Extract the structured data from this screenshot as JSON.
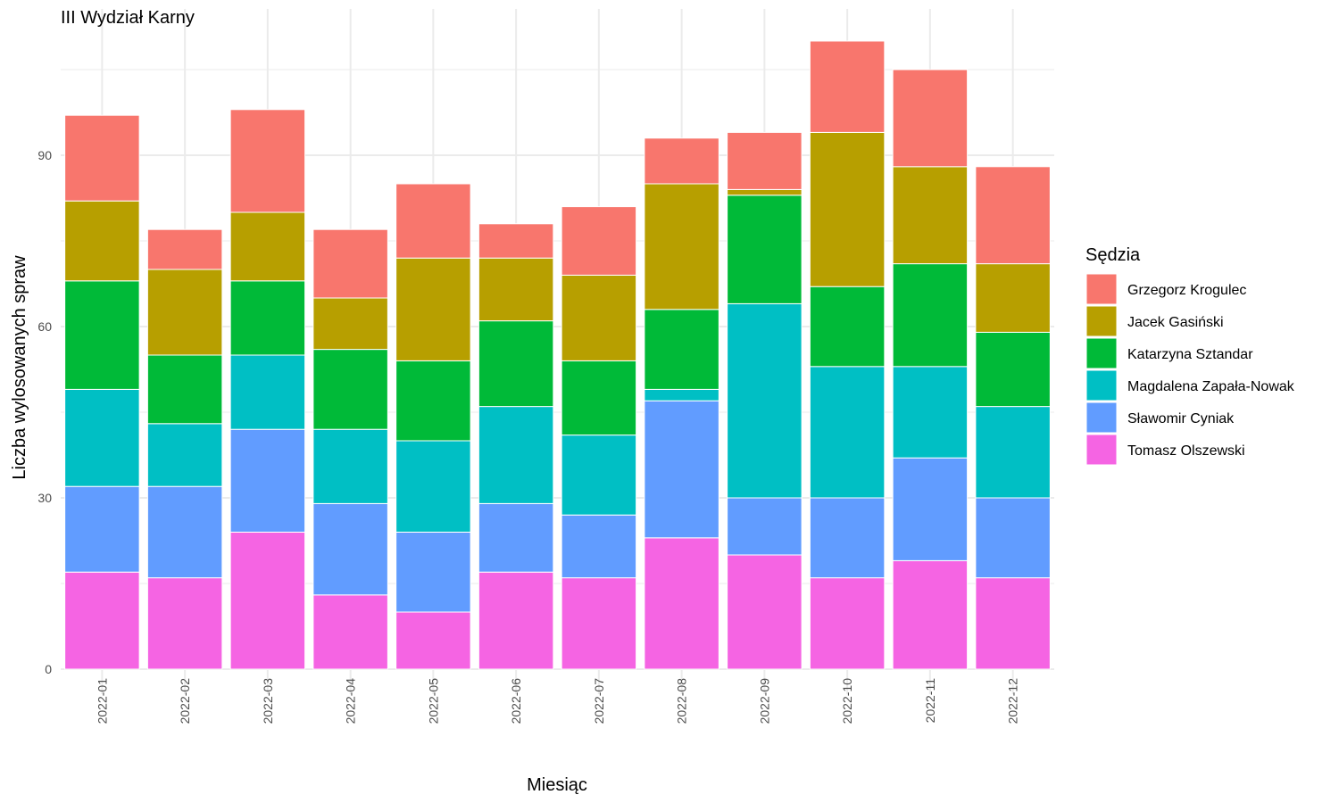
{
  "chart_data": {
    "type": "bar",
    "stacked": true,
    "title": "III Wydział Karny",
    "xlabel": "Miesiąc",
    "ylabel": "Liczba wylosowanych spraw",
    "ylim": [
      0,
      112
    ],
    "yticks": [
      0,
      30,
      60,
      90
    ],
    "grid": true,
    "legend_title": "Sędzia",
    "legend_position": "right",
    "categories": [
      "2022-01",
      "2022-02",
      "2022-03",
      "2022-04",
      "2022-05",
      "2022-06",
      "2022-07",
      "2022-08",
      "2022-09",
      "2022-10",
      "2022-11",
      "2022-12"
    ],
    "series": [
      {
        "name": "Tomasz Olszewski",
        "color": "#F564E3",
        "values": [
          17,
          16,
          24,
          13,
          10,
          17,
          16,
          23,
          20,
          16,
          19,
          16
        ]
      },
      {
        "name": "Sławomir Cyniak",
        "color": "#619CFF",
        "values": [
          15,
          16,
          18,
          16,
          14,
          12,
          11,
          24,
          10,
          14,
          18,
          14
        ]
      },
      {
        "name": "Magdalena Zapała-Nowak",
        "color": "#00BFC4",
        "values": [
          17,
          11,
          13,
          13,
          16,
          17,
          14,
          2,
          34,
          23,
          16,
          16
        ]
      },
      {
        "name": "Katarzyna Sztandar",
        "color": "#00BA38",
        "values": [
          19,
          12,
          13,
          14,
          14,
          15,
          13,
          14,
          19,
          14,
          18,
          13
        ]
      },
      {
        "name": "Jacek Gasiński",
        "color": "#B79F00",
        "values": [
          14,
          15,
          12,
          9,
          18,
          11,
          15,
          22,
          1,
          27,
          17,
          12
        ]
      },
      {
        "name": "Grzegorz Krogulec",
        "color": "#F8766D",
        "values": [
          15,
          7,
          18,
          12,
          13,
          6,
          12,
          8,
          10,
          16,
          17,
          17
        ]
      }
    ],
    "legend_order": [
      "Grzegorz Krogulec",
      "Jacek Gasiński",
      "Katarzyna Sztandar",
      "Magdalena Zapała-Nowak",
      "Sławomir Cyniak",
      "Tomasz Olszewski"
    ]
  }
}
